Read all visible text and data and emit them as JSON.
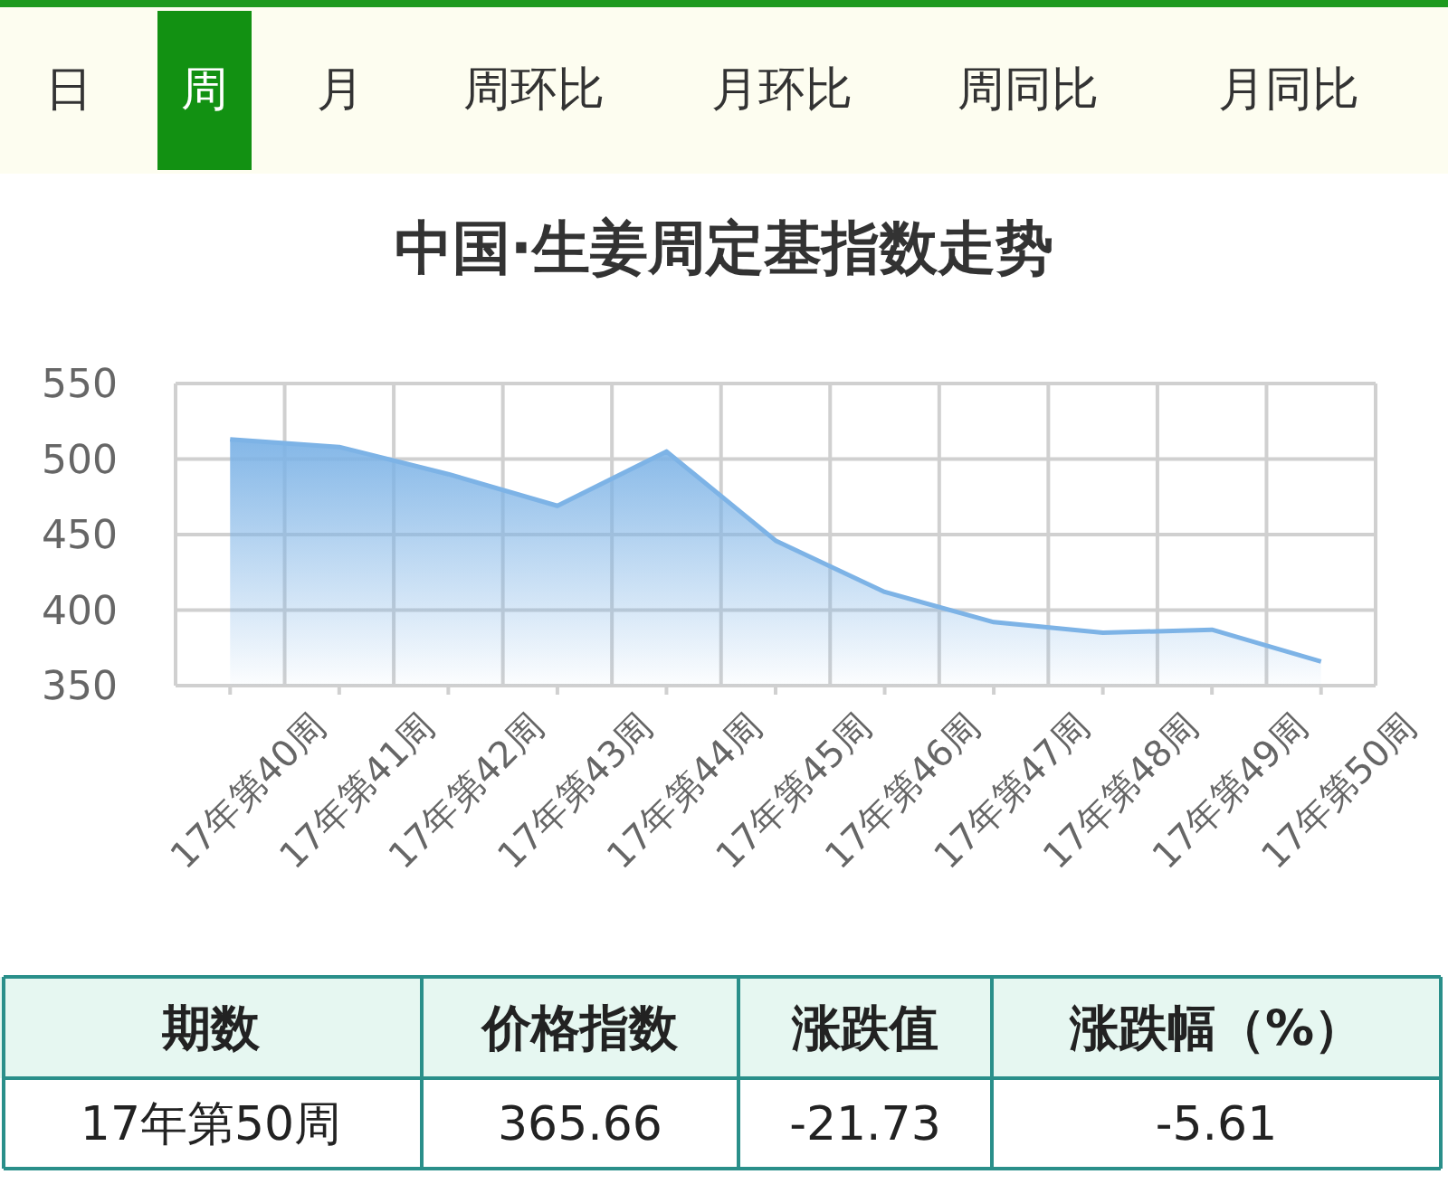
{
  "chart_data": [
    {
      "type": "other",
      "annotations": [
        "日",
        "周",
        "月",
        "周环比",
        "月环比",
        "周同比",
        "月同比"
      ]
    },
    {
      "type": "area",
      "title": "中国·生姜周定基指数走势",
      "categories": [
        "17年第40周",
        "17年第41周",
        "17年第42周",
        "17年第43周",
        "17年第44周",
        "17年第45周",
        "17年第46周",
        "17年第47周",
        "17年第48周",
        "17年第49周",
        "17年第50周"
      ],
      "series": [
        {
          "color": "#7db3e6",
          "values": [
            513,
            508,
            490,
            469,
            505,
            446,
            412,
            392,
            385,
            387,
            366
          ]
        }
      ],
      "ylim": [
        350,
        550
      ],
      "yticks": [
        350,
        400,
        450,
        500,
        550
      ],
      "grid": true
    },
    {
      "type": "other",
      "annotations": [
        "期数",
        "价格指数",
        "涨跌值",
        "涨跌幅（%）",
        "17年第50周",
        "365.66",
        "-21.73",
        "-5.61"
      ]
    }
  ]
}
